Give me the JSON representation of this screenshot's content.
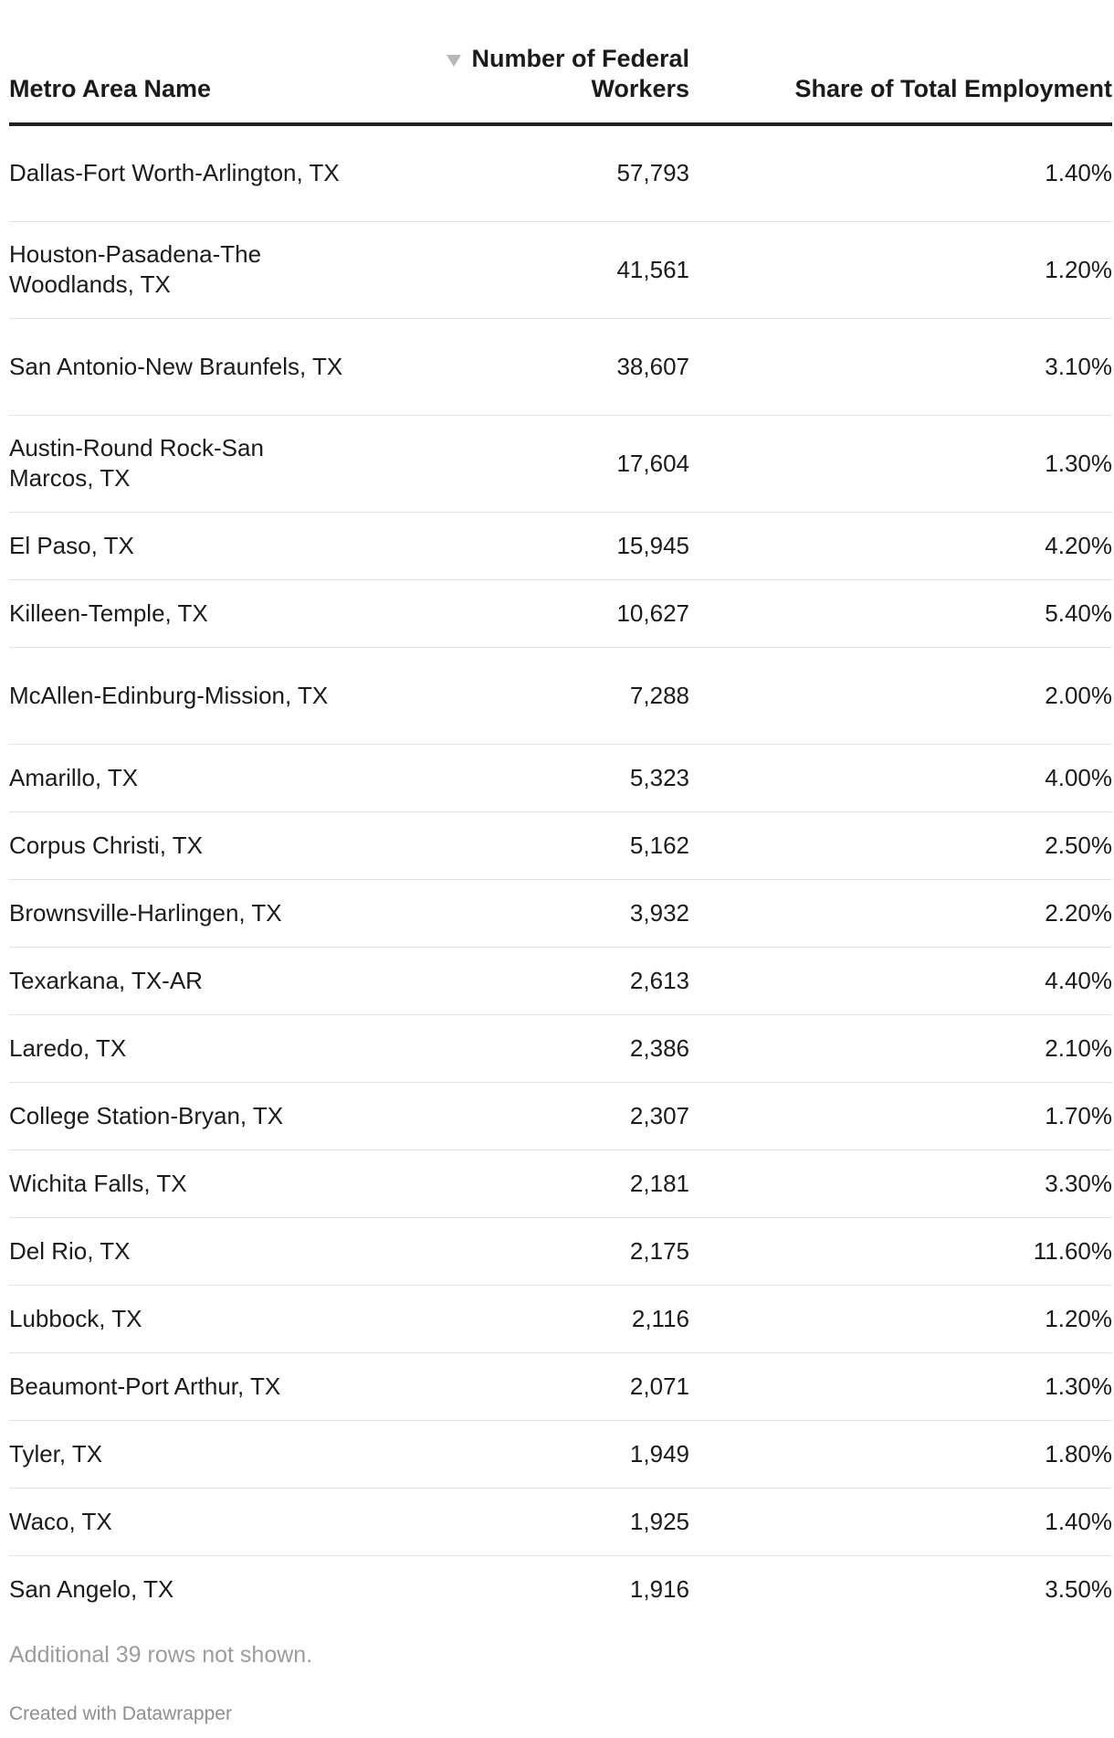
{
  "chart_data": {
    "type": "table",
    "columns": [
      "Metro Area Name",
      "Number of Federal Workers",
      "Share of Total Employment"
    ],
    "sorted_column": "Number of Federal Workers",
    "sort_direction": "descending",
    "rows": [
      {
        "name": "Dallas-Fort Worth-Arlington, TX",
        "workers": "57,793",
        "share": "1.40%"
      },
      {
        "name": "Houston-Pasadena-The Woodlands, TX",
        "workers": "41,561",
        "share": "1.20%"
      },
      {
        "name": "San Antonio-New Braunfels, TX",
        "workers": "38,607",
        "share": "3.10%"
      },
      {
        "name": "Austin-Round Rock-San Marcos, TX",
        "workers": "17,604",
        "share": "1.30%"
      },
      {
        "name": "El Paso, TX",
        "workers": "15,945",
        "share": "4.20%"
      },
      {
        "name": "Killeen-Temple, TX",
        "workers": "10,627",
        "share": "5.40%"
      },
      {
        "name": "McAllen-Edinburg-Mission, TX",
        "workers": "7,288",
        "share": "2.00%"
      },
      {
        "name": "Amarillo, TX",
        "workers": "5,323",
        "share": "4.00%"
      },
      {
        "name": "Corpus Christi, TX",
        "workers": "5,162",
        "share": "2.50%"
      },
      {
        "name": "Brownsville-Harlingen, TX",
        "workers": "3,932",
        "share": "2.20%"
      },
      {
        "name": "Texarkana, TX-AR",
        "workers": "2,613",
        "share": "4.40%"
      },
      {
        "name": "Laredo, TX",
        "workers": "2,386",
        "share": "2.10%"
      },
      {
        "name": "College Station-Bryan, TX",
        "workers": "2,307",
        "share": "1.70%"
      },
      {
        "name": "Wichita Falls, TX",
        "workers": "2,181",
        "share": "3.30%"
      },
      {
        "name": "Del Rio, TX",
        "workers": "2,175",
        "share": "11.60%"
      },
      {
        "name": "Lubbock, TX",
        "workers": "2,116",
        "share": "1.20%"
      },
      {
        "name": "Beaumont-Port Arthur, TX",
        "workers": "2,071",
        "share": "1.30%"
      },
      {
        "name": "Tyler, TX",
        "workers": "1,949",
        "share": "1.80%"
      },
      {
        "name": "Waco, TX",
        "workers": "1,925",
        "share": "1.40%"
      },
      {
        "name": "San Angelo, TX",
        "workers": "1,916",
        "share": "3.50%"
      }
    ],
    "footnote": "Additional 39 rows not shown.",
    "credit": "Created with Datawrapper"
  },
  "icons": {
    "sort": "sort-descending-icon"
  },
  "colors": {
    "text": "#1b1b1b",
    "header_rule": "#222222",
    "row_divider": "#e2e2e2",
    "sort_icon": "#b8b8b8",
    "muted_text": "#9c9c9c"
  }
}
